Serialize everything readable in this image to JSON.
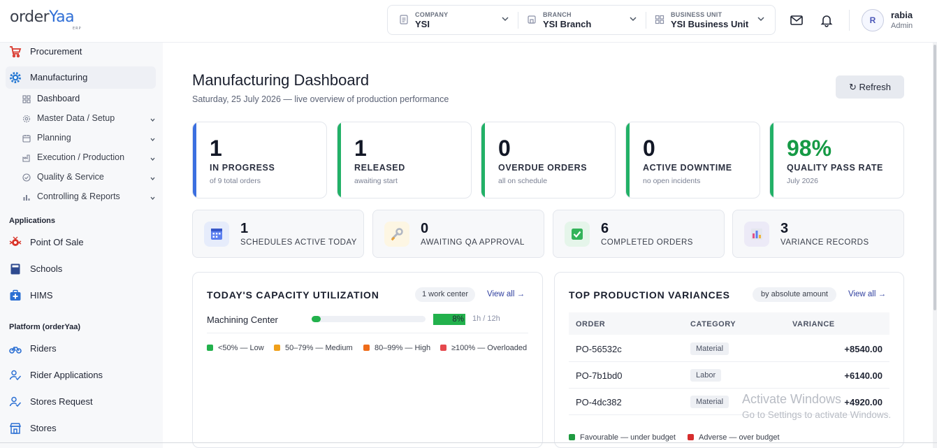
{
  "brand": {
    "logo_prefix": "order",
    "logo_suffix": "Yaa",
    "logo_tag": "ERP"
  },
  "header": {
    "company": {
      "caption": "COMPANY",
      "value": "YSI"
    },
    "branch": {
      "caption": "BRANCH",
      "value": "YSI Branch"
    },
    "business_unit": {
      "caption": "BUSINESS UNIT",
      "value": "YSI Business Unit"
    },
    "user": {
      "initial": "R",
      "name": "rabia",
      "role": "Admin"
    }
  },
  "sidebar": {
    "items": [
      {
        "label": "Procurement",
        "icon": "cart-icon"
      },
      {
        "label": "Manufacturing",
        "icon": "gear-icon",
        "active": true
      }
    ],
    "sub_items": [
      {
        "label": "Dashboard",
        "icon": "grid-icon",
        "active": true
      },
      {
        "label": "Master Data / Setup",
        "icon": "settings-icon"
      },
      {
        "label": "Planning",
        "icon": "calendar-icon"
      },
      {
        "label": "Execution / Production",
        "icon": "factory-icon"
      },
      {
        "label": "Quality & Service",
        "icon": "check-circle-icon"
      },
      {
        "label": "Controlling & Reports",
        "icon": "bar-chart-icon"
      }
    ],
    "applications_title": "Applications",
    "applications": [
      {
        "label": "Point Of Sale",
        "icon": "pos-icon"
      },
      {
        "label": "Schools",
        "icon": "book-icon"
      },
      {
        "label": "HIMS",
        "icon": "medical-icon"
      }
    ],
    "platform_title": "Platform (orderYaa)",
    "platform": [
      {
        "label": "Riders",
        "icon": "bike-icon"
      },
      {
        "label": "Rider Applications",
        "icon": "user-check-icon"
      },
      {
        "label": "Stores Request",
        "icon": "user-check-icon"
      },
      {
        "label": "Stores",
        "icon": "store-icon"
      }
    ]
  },
  "main": {
    "title": "Manufacturing Dashboard",
    "subtitle": "Saturday, 25 July 2026 — live overview of production performance",
    "refresh_label": "↻ Refresh",
    "kpis": [
      {
        "value": "1",
        "label": "IN PROGRESS",
        "note": "of 9 total orders",
        "accent": "#3b6fe0",
        "value_color": "#121726"
      },
      {
        "value": "1",
        "label": "RELEASED",
        "note": "awaiting start",
        "accent": "#22b167",
        "value_color": "#121726"
      },
      {
        "value": "0",
        "label": "OVERDUE ORDERS",
        "note": "all on schedule",
        "accent": "#22b167",
        "value_color": "#121726"
      },
      {
        "value": "0",
        "label": "ACTIVE DOWNTIME",
        "note": "no open incidents",
        "accent": "#22b167",
        "value_color": "#121726"
      },
      {
        "value": "98%",
        "label": "QUALITY PASS RATE",
        "note": "July 2026",
        "accent": "#22b167",
        "value_color": "#169a45"
      }
    ],
    "mini_stats": [
      {
        "value": "1",
        "label": "SCHEDULES ACTIVE TODAY",
        "icon": "calendar-icon",
        "bg": "#e6ecfb"
      },
      {
        "value": "0",
        "label": "AWAITING QA APPROVAL",
        "icon": "wrench-icon",
        "bg": "#fdf6e3"
      },
      {
        "value": "6",
        "label": "COMPLETED ORDERS",
        "icon": "check-box-icon",
        "bg": "#e5f5ea"
      },
      {
        "value": "3",
        "label": "VARIANCE RECORDS",
        "icon": "chart-icon",
        "bg": "#eceaf7"
      }
    ]
  },
  "capacity": {
    "title": "TODAY'S CAPACITY UTILIZATION",
    "pill": "1 work center",
    "view_all": "View all →",
    "rows": [
      {
        "name": "Machining Center",
        "percent_label": "8%",
        "utilization": 0.08,
        "hours": "1h / 12h"
      }
    ],
    "legend": [
      {
        "label": "<50% — Low",
        "color": "#22b14c"
      },
      {
        "label": "50–79% — Medium",
        "color": "#f0a01a"
      },
      {
        "label": "80–99% — High",
        "color": "#ef6c1a"
      },
      {
        "label": "≥100% — Overloaded",
        "color": "#e5484d"
      }
    ]
  },
  "variances": {
    "title": "TOP PRODUCTION VARIANCES",
    "pill": "by absolute amount",
    "view_all": "View all →",
    "columns": [
      "ORDER",
      "CATEGORY",
      "VARIANCE"
    ],
    "rows": [
      {
        "order": "PO-56532c",
        "category": "Material",
        "amount": "+8540.00"
      },
      {
        "order": "PO-7b1bd0",
        "category": "Labor",
        "amount": "+6140.00"
      },
      {
        "order": "PO-4dc382",
        "category": "Material",
        "amount": "+4920.00"
      }
    ],
    "legend": [
      {
        "label": "Favourable — under budget",
        "color": "#1f9a40"
      },
      {
        "label": "Adverse — over budget",
        "color": "#d62d2d"
      }
    ]
  },
  "watermark": {
    "line1": "Activate Windows",
    "line2": "Go to Settings to activate Windows."
  }
}
